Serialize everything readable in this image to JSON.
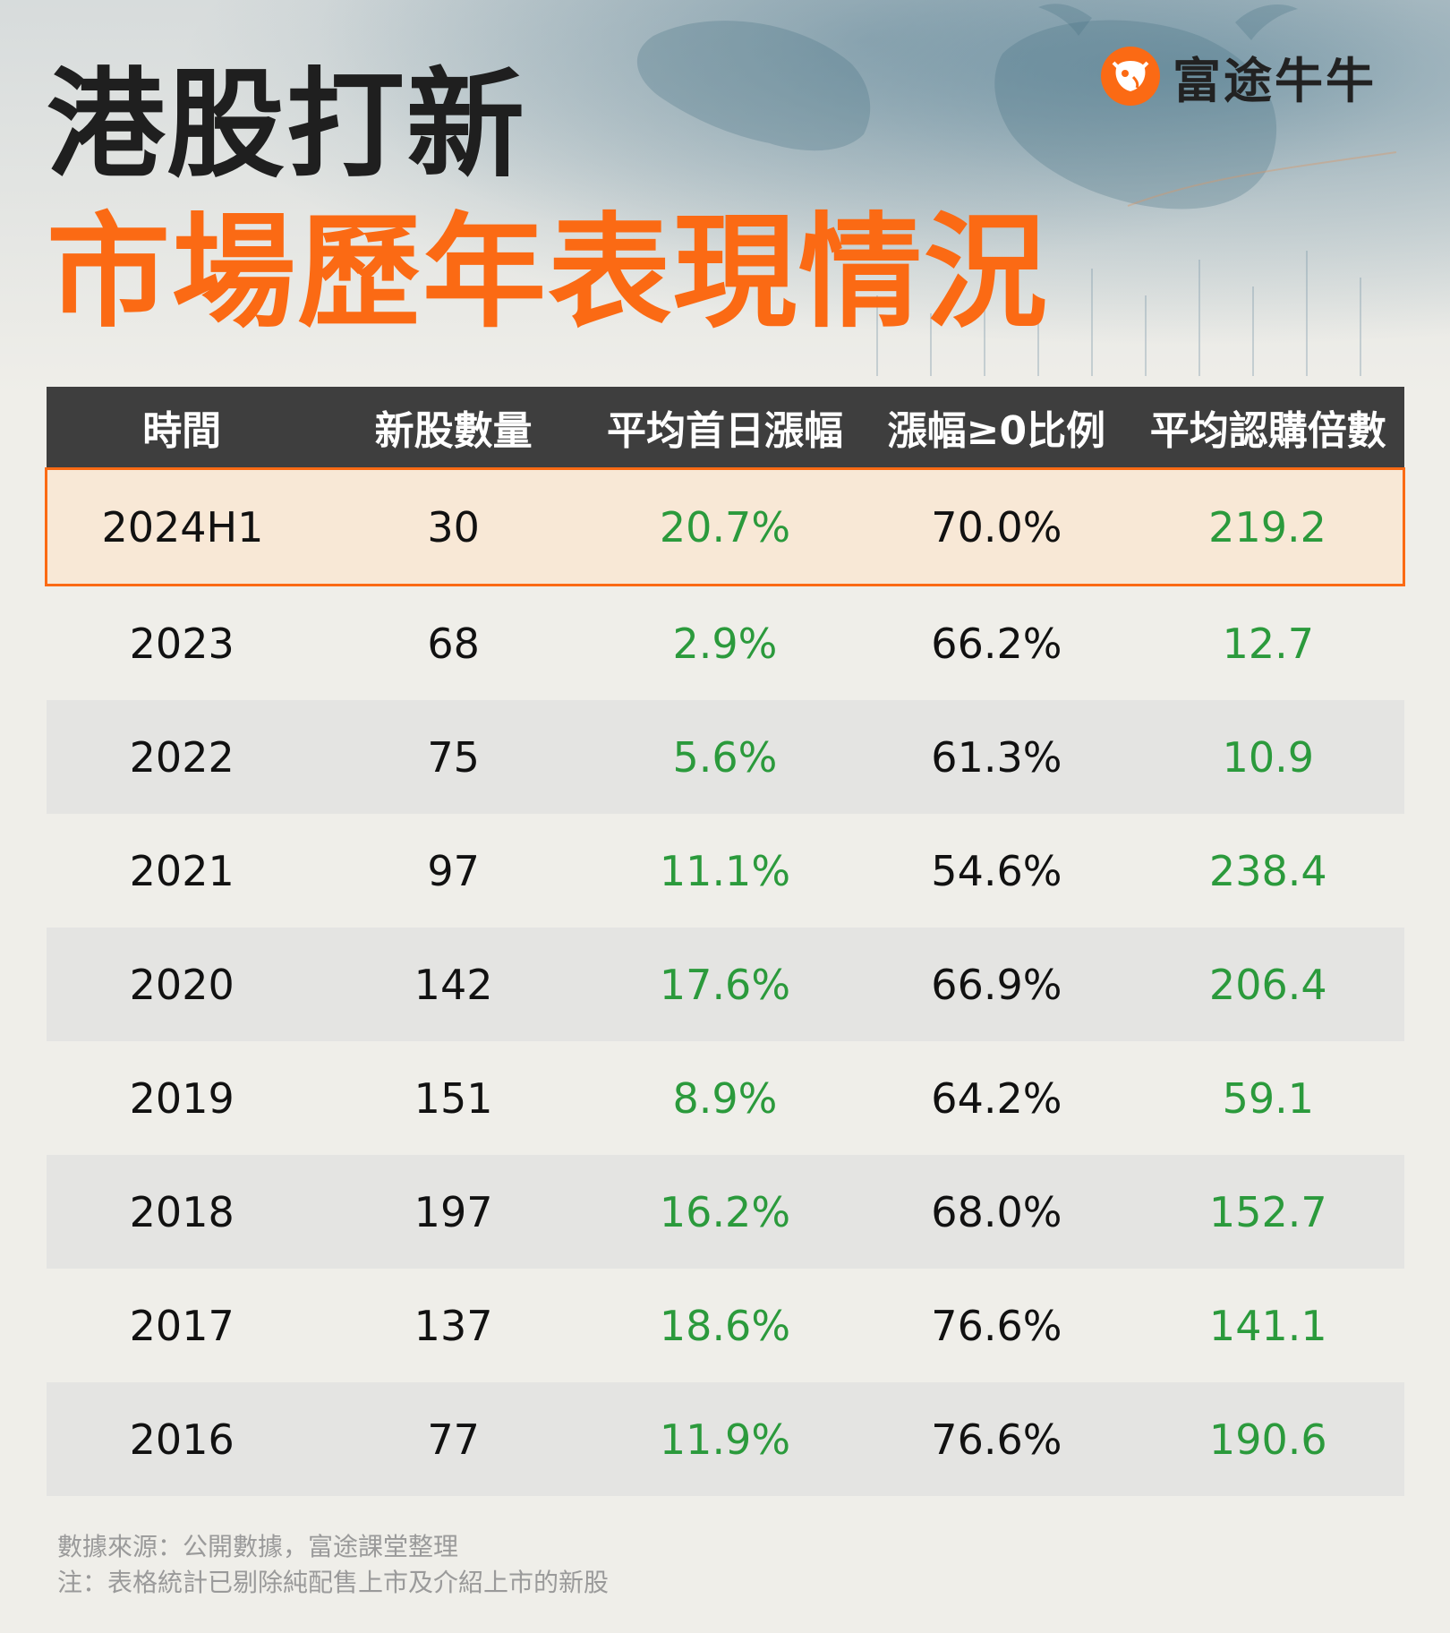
{
  "header": {
    "title_line1": "港股打新",
    "title_line2": "市場歷年表現情況",
    "brand_name": "富途牛牛"
  },
  "colors": {
    "accent": "#fb6a14",
    "positive": "#2b9a3c",
    "header_bg": "#3e3e3e"
  },
  "table": {
    "columns": [
      "時間",
      "新股數量",
      "平均首日漲幅",
      "漲幅≥0比例",
      "平均認購倍數"
    ],
    "rows": [
      {
        "period": "2024H1",
        "count": "30",
        "avg_first_day": "20.7%",
        "ratio": "70.0%",
        "subscription": "219.2",
        "highlight": true
      },
      {
        "period": "2023",
        "count": "68",
        "avg_first_day": "2.9%",
        "ratio": "66.2%",
        "subscription": "12.7"
      },
      {
        "period": "2022",
        "count": "75",
        "avg_first_day": "5.6%",
        "ratio": "61.3%",
        "subscription": "10.9"
      },
      {
        "period": "2021",
        "count": "97",
        "avg_first_day": "11.1%",
        "ratio": "54.6%",
        "subscription": "238.4"
      },
      {
        "period": "2020",
        "count": "142",
        "avg_first_day": "17.6%",
        "ratio": "66.9%",
        "subscription": "206.4"
      },
      {
        "period": "2019",
        "count": "151",
        "avg_first_day": "8.9%",
        "ratio": "64.2%",
        "subscription": "59.1"
      },
      {
        "period": "2018",
        "count": "197",
        "avg_first_day": "16.2%",
        "ratio": "68.0%",
        "subscription": "152.7"
      },
      {
        "period": "2017",
        "count": "137",
        "avg_first_day": "18.6%",
        "ratio": "76.6%",
        "subscription": "141.1"
      },
      {
        "period": "2016",
        "count": "77",
        "avg_first_day": "11.9%",
        "ratio": "76.6%",
        "subscription": "190.6"
      }
    ]
  },
  "footer": {
    "source": "數據來源：公開數據，富途課堂整理",
    "note": "注：表格統計已剔除純配售上市及介紹上市的新股"
  }
}
